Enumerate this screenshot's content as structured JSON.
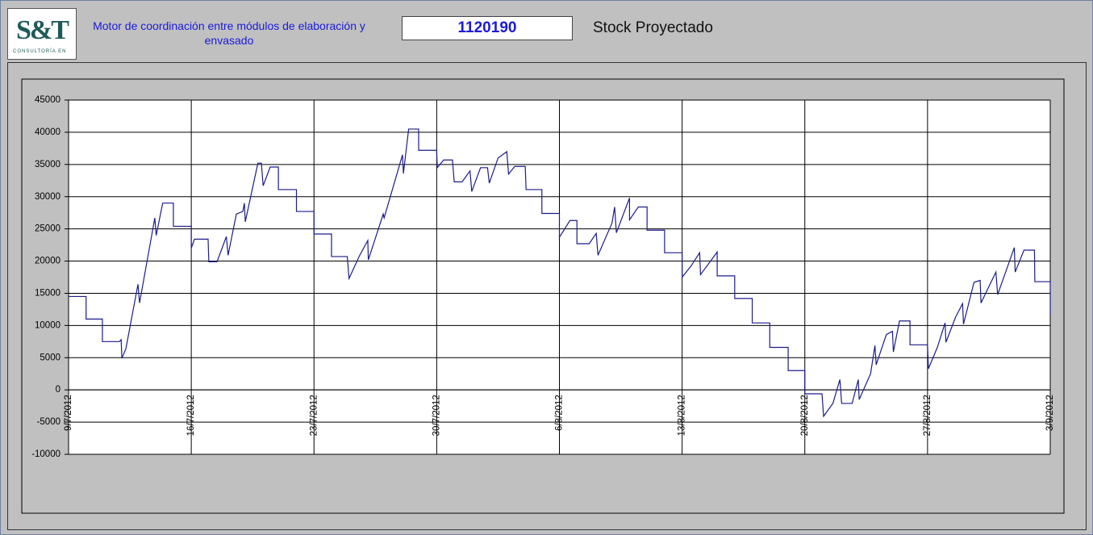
{
  "header": {
    "logo": "S&T",
    "logo_sub": "CONSULTORÍA EN",
    "title": "Motor de coordinación entre módulos de elaboración y envasado",
    "code": "1120190",
    "label": "Stock Proyectado"
  },
  "chart_data": {
    "type": "line",
    "xlim": [
      0,
      56
    ],
    "xticks": [
      {
        "value": 0,
        "label": "9/7/2012"
      },
      {
        "value": 7,
        "label": "16/7/2012"
      },
      {
        "value": 14,
        "label": "23/7/2012"
      },
      {
        "value": 21,
        "label": "30/7/2012"
      },
      {
        "value": 28,
        "label": "6/8/2012"
      },
      {
        "value": 35,
        "label": "13/8/2012"
      },
      {
        "value": 42,
        "label": "20/8/2012"
      },
      {
        "value": 49,
        "label": "27/8/2012"
      },
      {
        "value": 56,
        "label": "3/9/2012"
      }
    ],
    "ylim": [
      -10000,
      45000
    ],
    "yticks": [
      -10000,
      -5000,
      0,
      5000,
      10000,
      15000,
      20000,
      25000,
      30000,
      35000,
      40000,
      45000
    ],
    "grid": true,
    "series": [
      {
        "color": "#1c1c8c",
        "x": [
          0,
          1,
          1,
          1.93,
          1.93,
          2.9,
          3.0,
          3.04,
          3.27,
          3.96,
          4.05,
          4.92,
          5.0,
          5.37,
          5.98,
          5.98,
          7.0,
          7.0,
          7.18,
          7.96,
          8.0,
          8.47,
          9.0,
          9.1,
          9.57,
          9.94,
          10.03,
          10.08,
          10.8,
          11.0,
          11.1,
          11.5,
          11.97,
          11.97,
          13.0,
          13.0,
          14.0,
          14.0,
          15.0,
          15.0,
          15.9,
          16.0,
          16.57,
          17.07,
          17.1,
          17.95,
          18.0,
          19.05,
          19.1,
          19.4,
          19.97,
          19.97,
          21.0,
          21.03,
          21.4,
          21.9,
          22.0,
          22.45,
          22.9,
          23.0,
          23.5,
          23.9,
          24.0,
          24.5,
          25.0,
          25.1,
          25.45,
          26.05,
          26.1,
          27.0,
          27.0,
          28.0,
          28.0,
          28.6,
          29.0,
          29.0,
          29.7,
          30.1,
          30.2,
          31.0,
          31.15,
          31.25,
          32.0,
          32.0,
          32.5,
          33.0,
          33.0,
          34.0,
          34.0,
          35.0,
          35.0,
          35.5,
          36.0,
          36.05,
          37.0,
          37.0,
          38.0,
          38.0,
          39.0,
          39.0,
          40.0,
          40.0,
          41.05,
          41.05,
          42.0,
          42.0,
          42.98,
          43.07,
          43.6,
          44.0,
          44.1,
          44.7,
          45.05,
          45.1,
          45.75,
          46.0,
          46.07,
          46.65,
          47.0,
          47.05,
          47.4,
          48.0,
          48.0,
          49.0,
          49.05,
          49.56,
          50.0,
          50.05,
          50.6,
          51.0,
          51.05,
          51.65,
          52.0,
          52.05,
          52.9,
          53.0,
          53.95,
          54.0,
          54.5,
          55.1,
          55.12,
          56.0,
          56.0
        ],
        "values": [
          14500,
          14500,
          11000,
          11000,
          7500,
          7500,
          7800,
          4900,
          6400,
          16400,
          13500,
          26700,
          24000,
          29000,
          29000,
          25400,
          25400,
          22000,
          23400,
          23400,
          19900,
          19900,
          23800,
          20900,
          27300,
          27700,
          29000,
          26100,
          35200,
          35200,
          31700,
          34600,
          34600,
          31100,
          31100,
          27700,
          27700,
          24200,
          24200,
          20700,
          20700,
          17300,
          20700,
          23200,
          20200,
          27300,
          26700,
          36500,
          33600,
          40500,
          40500,
          37200,
          37200,
          34500,
          35700,
          35700,
          32300,
          32300,
          34000,
          30800,
          34500,
          34500,
          32100,
          36000,
          37000,
          33500,
          34700,
          34700,
          31100,
          31100,
          27400,
          27400,
          23700,
          26300,
          26300,
          22700,
          22700,
          24300,
          20900,
          25900,
          28400,
          24400,
          29800,
          26400,
          28400,
          28400,
          24800,
          24800,
          21300,
          21300,
          17500,
          19200,
          21300,
          17900,
          21400,
          17700,
          17700,
          14200,
          14200,
          10400,
          10400,
          6600,
          6600,
          3000,
          3000,
          -600,
          -600,
          -4100,
          -2100,
          1600,
          -2100,
          -2100,
          1600,
          -1500,
          2500,
          6900,
          3900,
          8600,
          9100,
          5900,
          10700,
          10700,
          7000,
          7000,
          3300,
          6600,
          10400,
          7400,
          11300,
          13400,
          10200,
          16700,
          17000,
          13500,
          18300,
          14800,
          22100,
          18300,
          21700,
          21700,
          16800,
          16800,
          11700
        ]
      }
    ]
  }
}
